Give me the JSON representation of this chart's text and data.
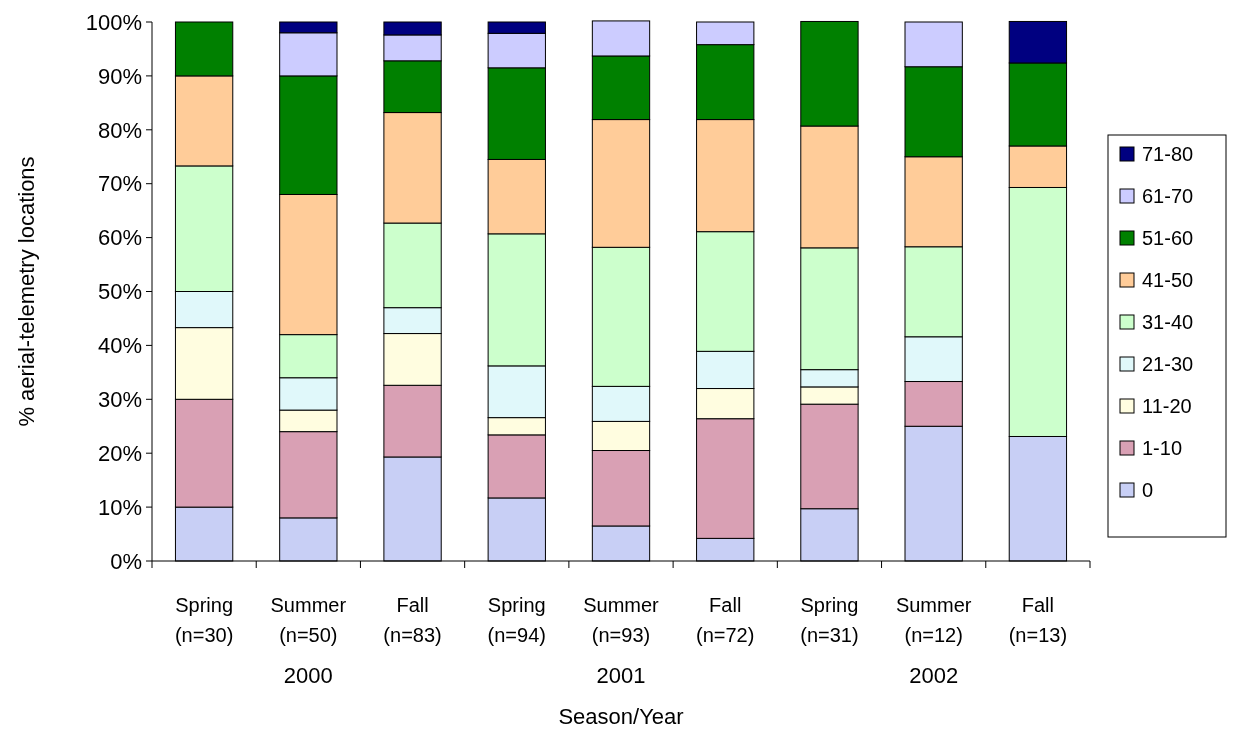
{
  "chart_data": {
    "type": "bar",
    "stacked": true,
    "xlabel": "Season/Year",
    "ylabel": "% aerial-telemetry locations",
    "categories": [
      "Spring (n=30)",
      "Summer (n=50)",
      "Fall (n=83)",
      "Spring (n=94)",
      "Summer (n=93)",
      "Fall (n=72)",
      "Spring (n=31)",
      "Summer (n=12)",
      "Fall (n=13)"
    ],
    "annotations": [
      "2000",
      "2001",
      "2002"
    ],
    "series": [
      {
        "name": "0",
        "color": "#c8cff5",
        "values": [
          10,
          8,
          19.3,
          11.7,
          6.5,
          4.2,
          9.7,
          25,
          23.1
        ]
      },
      {
        "name": "1-10",
        "color": "#d9a0b4",
        "values": [
          20,
          16,
          13.3,
          11.7,
          14,
          22.2,
          19.4,
          8.3,
          0
        ]
      },
      {
        "name": "11-20",
        "color": "#fffde0",
        "values": [
          13.3,
          4,
          9.6,
          3.2,
          5.4,
          5.6,
          3.2,
          0,
          0
        ]
      },
      {
        "name": "21-30",
        "color": "#e0f8fa",
        "values": [
          6.7,
          6,
          4.8,
          9.6,
          6.5,
          6.9,
          3.2,
          8.3,
          0
        ]
      },
      {
        "name": "31-40",
        "color": "#ccffcc",
        "values": [
          23.3,
          8,
          15.7,
          24.5,
          25.8,
          22.2,
          22.6,
          16.7,
          46.2
        ]
      },
      {
        "name": "41-50",
        "color": "#ffcc99",
        "values": [
          16.7,
          26,
          20.5,
          13.8,
          23.7,
          20.8,
          22.6,
          16.7,
          7.7
        ]
      },
      {
        "name": "51-60",
        "color": "#008000",
        "values": [
          10,
          22,
          9.6,
          17,
          11.8,
          13.9,
          19.4,
          16.7,
          15.4
        ]
      },
      {
        "name": "61-70",
        "color": "#ccccff",
        "values": [
          0,
          8,
          4.8,
          6.4,
          6.5,
          4.2,
          0,
          8.3,
          0
        ]
      },
      {
        "name": "71-80",
        "color": "#000080",
        "values": [
          0,
          2,
          2.4,
          2.1,
          0,
          0,
          0,
          0,
          7.7
        ]
      }
    ],
    "ylim": [
      0,
      100
    ],
    "yticks": [
      {
        "value": 0,
        "label": "0%"
      },
      {
        "value": 10,
        "label": "10%"
      },
      {
        "value": 20,
        "label": "20%"
      },
      {
        "value": 30,
        "label": "30%"
      },
      {
        "value": 40,
        "label": "40%"
      },
      {
        "value": 50,
        "label": "50%"
      },
      {
        "value": 60,
        "label": "60%"
      },
      {
        "value": 70,
        "label": "70%"
      },
      {
        "value": 80,
        "label": "80%"
      },
      {
        "value": 90,
        "label": "90%"
      },
      {
        "value": 100,
        "label": "100%"
      }
    ],
    "legend": "right",
    "grid": false
  }
}
